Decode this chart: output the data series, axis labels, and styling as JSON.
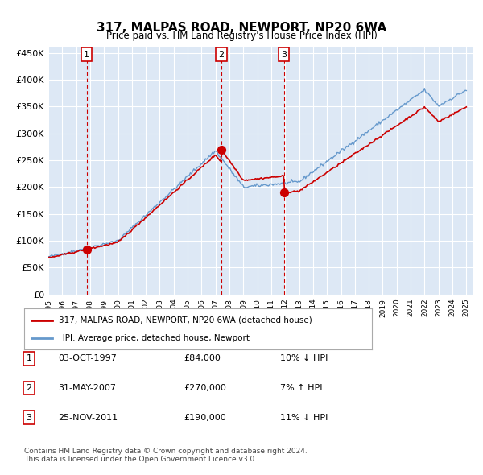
{
  "title": "317, MALPAS ROAD, NEWPORT, NP20 6WA",
  "subtitle": "Price paid vs. HM Land Registry's House Price Index (HPI)",
  "xlabel": "",
  "ylabel": "",
  "ylim": [
    0,
    460000
  ],
  "yticks": [
    0,
    50000,
    100000,
    150000,
    200000,
    250000,
    300000,
    350000,
    400000,
    450000
  ],
  "ytick_labels": [
    "£0",
    "£50K",
    "£100K",
    "£150K",
    "£200K",
    "£250K",
    "£300K",
    "£350K",
    "£400K",
    "£450K"
  ],
  "bg_color": "#dde8f5",
  "plot_bg": "#dde8f5",
  "grid_color": "#ffffff",
  "hpi_color": "#6699cc",
  "price_color": "#cc0000",
  "sales": [
    {
      "date_num": 1997.75,
      "price": 84000,
      "label": "1"
    },
    {
      "date_num": 2007.42,
      "price": 270000,
      "label": "2"
    },
    {
      "date_num": 2011.9,
      "price": 190000,
      "label": "3"
    }
  ],
  "legend_label_red": "317, MALPAS ROAD, NEWPORT, NP20 6WA (detached house)",
  "legend_label_blue": "HPI: Average price, detached house, Newport",
  "table_rows": [
    {
      "num": "1",
      "date": "03-OCT-1997",
      "price": "£84,000",
      "hpi": "10% ↓ HPI"
    },
    {
      "num": "2",
      "date": "31-MAY-2007",
      "price": "£270,000",
      "hpi": "7% ↑ HPI"
    },
    {
      "num": "3",
      "date": "25-NOV-2011",
      "price": "£190,000",
      "hpi": "11% ↓ HPI"
    }
  ],
  "footnote": "Contains HM Land Registry data © Crown copyright and database right 2024.\nThis data is licensed under the Open Government Licence v3.0.",
  "vline_dates": [
    1997.75,
    2007.42,
    2011.9
  ]
}
